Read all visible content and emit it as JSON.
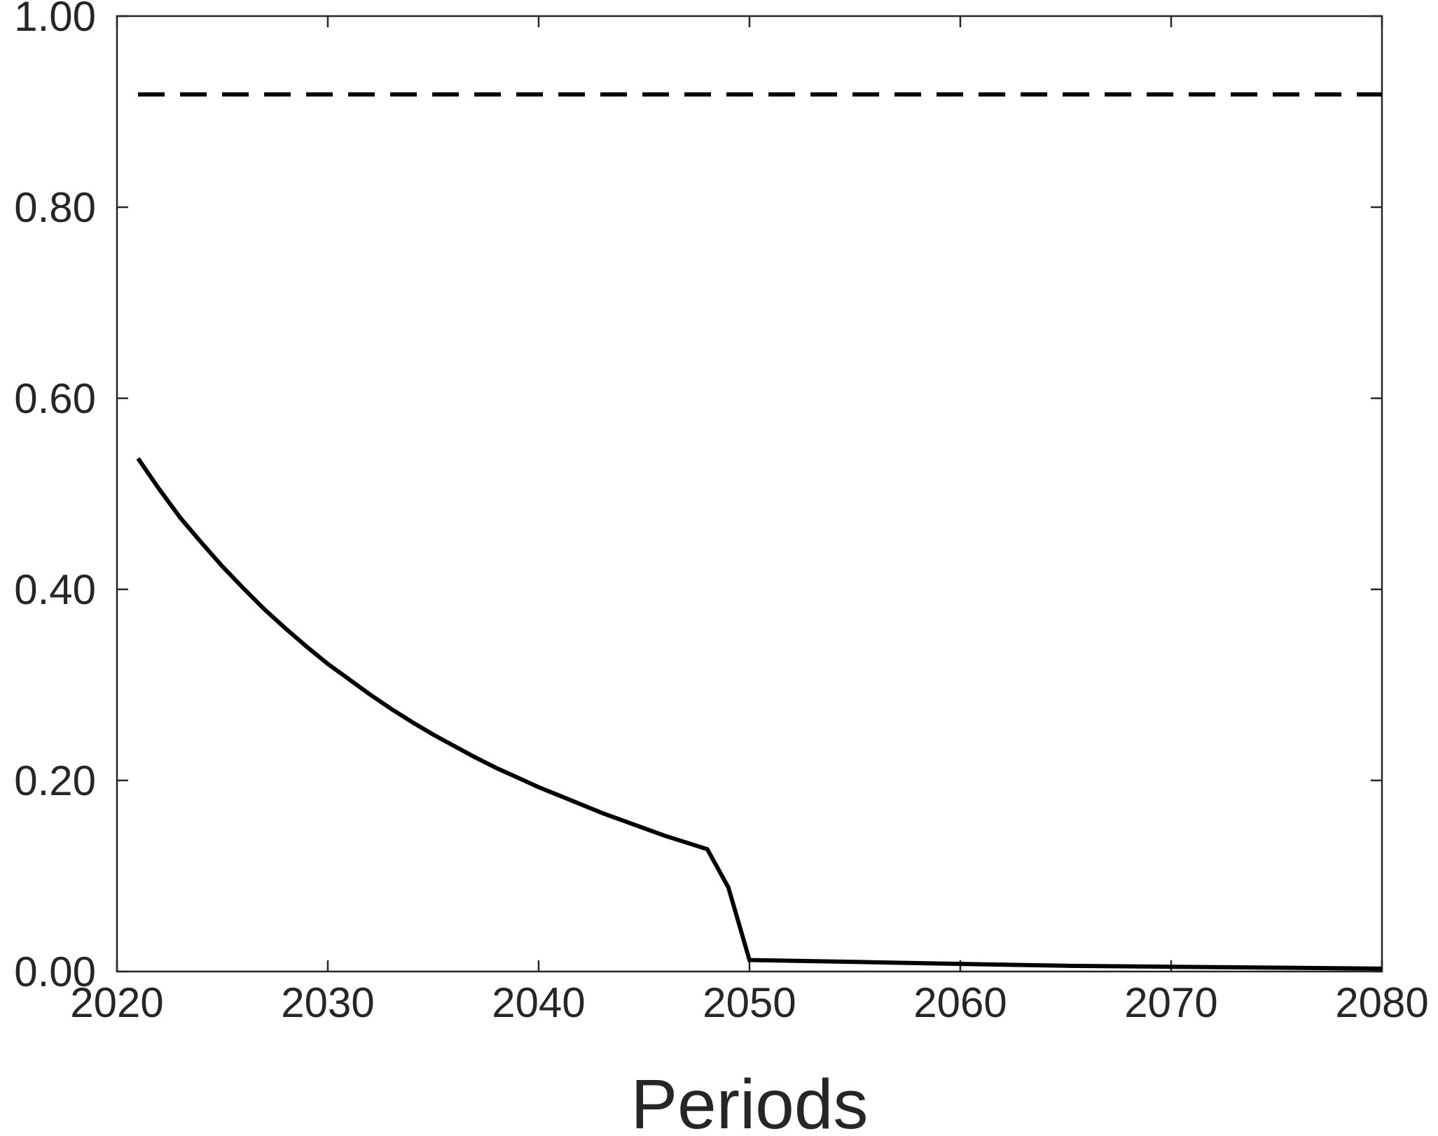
{
  "chart_data": {
    "type": "line",
    "title": "",
    "xlabel": "Periods",
    "ylabel": "",
    "xlim": [
      2020,
      2080
    ],
    "ylim": [
      0,
      1
    ],
    "x_ticks": [
      2020,
      2030,
      2040,
      2050,
      2060,
      2070,
      2080
    ],
    "y_ticks": [
      0,
      0.2,
      0.4,
      0.6,
      0.8,
      1.0
    ],
    "x_tick_labels": [
      "2020",
      "2030",
      "2040",
      "2050",
      "2060",
      "2070",
      "2080"
    ],
    "y_tick_labels": [
      "0.00",
      "0.20",
      "0.40",
      "0.60",
      "0.80",
      "1.00"
    ],
    "grid": false,
    "legend": "none",
    "series": [
      {
        "style": "solid",
        "color": "#000000",
        "x": [
          2021,
          2022,
          2023,
          2024,
          2025,
          2026,
          2027,
          2028,
          2029,
          2030,
          2031,
          2032,
          2033,
          2034,
          2035,
          2036,
          2037,
          2038,
          2039,
          2040,
          2041,
          2042,
          2043,
          2044,
          2045,
          2046,
          2047,
          2048,
          2049,
          2050,
          2055,
          2060,
          2065,
          2070,
          2075,
          2080
        ],
        "y": [
          0.537,
          0.505,
          0.475,
          0.449,
          0.424,
          0.401,
          0.379,
          0.359,
          0.34,
          0.322,
          0.306,
          0.29,
          0.275,
          0.261,
          0.248,
          0.236,
          0.224,
          0.213,
          0.203,
          0.193,
          0.184,
          0.175,
          0.166,
          0.158,
          0.15,
          0.142,
          0.135,
          0.128,
          0.088,
          0.012,
          0.01,
          0.008,
          0.006,
          0.005,
          0.004,
          0.003
        ]
      },
      {
        "style": "dashed",
        "color": "#000000",
        "x": [
          2021,
          2080
        ],
        "y": [
          0.918,
          0.918
        ]
      }
    ]
  }
}
